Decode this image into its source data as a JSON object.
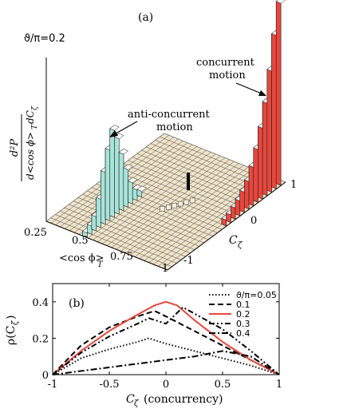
{
  "panel_a": {
    "label": "(a)",
    "theta_note": "ϑ/π=0.2",
    "zlabel_num": "d²P",
    "zlabel_den": "d<cos ϕ>",
    "zlabel_den_sub": "T",
    "zlabel_den_tail": "dC",
    "zlabel_den_tail_sub": "ζ",
    "xlabel": "<cos ϕ>",
    "xlabel_sub": "T",
    "ylabel": "C",
    "ylabel_sub": "ζ",
    "x_ticks": [
      "0.25",
      "0.5",
      "0.75",
      "1"
    ],
    "y_ticks": [
      "1",
      "0",
      "-1"
    ],
    "annotation_concurrent_1": "concurrent",
    "annotation_concurrent_2": "motion",
    "annotation_anti_1": "anti-concurrent",
    "annotation_anti_2": "motion"
  },
  "colors": {
    "surface": "#efe4c9",
    "anti_bars": "#a8e4d8",
    "concurrent_bars": "#e8473c",
    "grid_line": "#444444"
  },
  "chart_data": [
    {
      "type": "bar",
      "panel": "(a)",
      "note": "3D histogram of joint distribution over <cos ϕ>_T and C_ζ",
      "series": [
        {
          "name": "anti-concurrent motion",
          "x": "<cos ϕ>_T ≈ 0.5",
          "y": "C_ζ near -1",
          "relative_heights": [
            0.02,
            0.05,
            0.1,
            0.22,
            0.42,
            0.58,
            0.72,
            0.62,
            0.46,
            0.3,
            0.16,
            0.07,
            0.03
          ]
        },
        {
          "name": "concurrent motion",
          "x": "<cos ϕ>_T ≈ 1",
          "y": "C_ζ near 1",
          "relative_heights": [
            0.02,
            0.03,
            0.05,
            0.07,
            0.1,
            0.14,
            0.2,
            0.28,
            0.38,
            0.5,
            0.66,
            0.84,
            1.0
          ]
        }
      ],
      "xlim": [
        0.25,
        1
      ],
      "ylim": [
        -1,
        1
      ]
    },
    {
      "type": "line",
      "panel": "(b)",
      "xlabel": "C",
      "xlabel_sub": "ζ",
      "xlabel_tail": "(concurrency)",
      "ylabel": "ρ(C",
      "ylabel_sub": "ζ",
      "ylabel_tail": ")",
      "label": "(b)",
      "xlim": [
        -1,
        1
      ],
      "ylim": [
        0,
        0.5
      ],
      "x_ticks": [
        "-1",
        "-0.5",
        "0",
        "0.5",
        "1"
      ],
      "y_ticks": [
        "0",
        "0.2",
        "0.4"
      ],
      "x_tick_values": [
        -1,
        -0.5,
        0,
        0.5,
        1
      ],
      "y_tick_values": [
        0,
        0.2,
        0.4
      ],
      "series": [
        {
          "name": "ϑ/π=0.05",
          "style": "dotted",
          "color": "#000000",
          "x": [
            -1,
            -0.75,
            -0.5,
            -0.25,
            -0.15,
            0,
            0.25,
            0.5,
            0.75,
            1
          ],
          "y": [
            0,
            0.09,
            0.14,
            0.18,
            0.2,
            0.17,
            0.13,
            0.09,
            0.05,
            0
          ]
        },
        {
          "name": "0.1",
          "style": "dashed",
          "color": "#000000",
          "x": [
            -1,
            -0.75,
            -0.5,
            -0.25,
            -0.1,
            0,
            0.25,
            0.5,
            0.75,
            1
          ],
          "y": [
            0,
            0.16,
            0.26,
            0.32,
            0.35,
            0.32,
            0.24,
            0.16,
            0.08,
            0
          ]
        },
        {
          "name": "0.2",
          "style": "solid",
          "color": "#e8473c",
          "x": [
            -1,
            -0.75,
            -0.5,
            -0.25,
            -0.1,
            0,
            0.1,
            0.25,
            0.5,
            0.75,
            1
          ],
          "y": [
            0,
            0.13,
            0.24,
            0.33,
            0.38,
            0.4,
            0.38,
            0.3,
            0.18,
            0.08,
            0
          ]
        },
        {
          "name": "0.3",
          "style": "dash-dot-dot",
          "color": "#000000",
          "x": [
            -1,
            -0.75,
            -0.5,
            -0.25,
            -0.15,
            0,
            0.15,
            0.5,
            0.75,
            1
          ],
          "y": [
            0,
            0.12,
            0.21,
            0.28,
            0.31,
            0.28,
            0.37,
            0.25,
            0.13,
            0
          ]
        },
        {
          "name": "0.4",
          "style": "dash-dot",
          "color": "#000000",
          "x": [
            -1,
            -0.75,
            -0.5,
            -0.25,
            0,
            0.25,
            0.5,
            0.75,
            1
          ],
          "y": [
            0,
            0.02,
            0.04,
            0.06,
            0.08,
            0.1,
            0.13,
            0.1,
            0
          ]
        }
      ]
    }
  ]
}
